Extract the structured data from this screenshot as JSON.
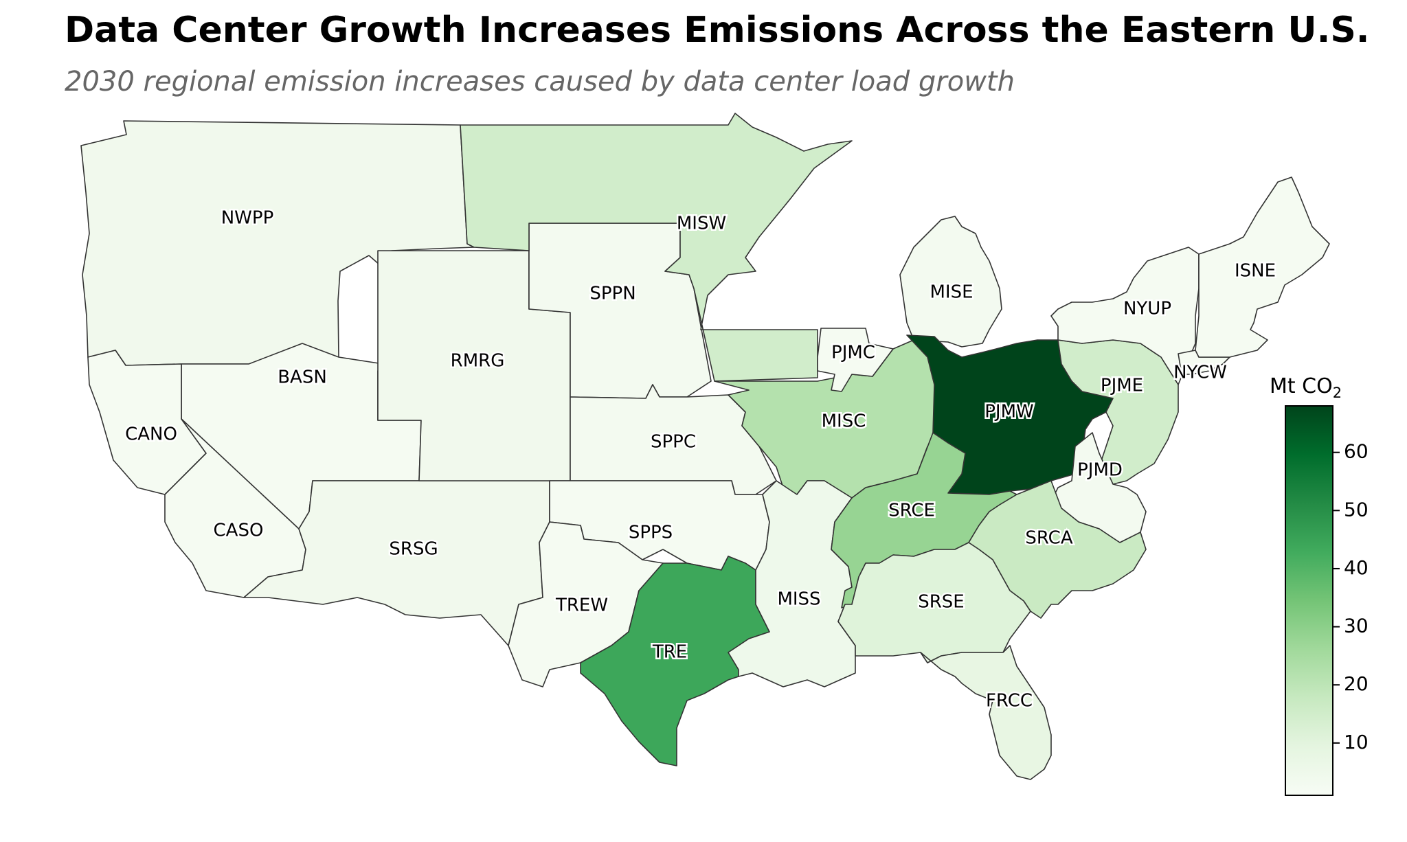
{
  "title": "Data Center Growth Increases Emissions Across the Eastern U.S.",
  "subtitle": "2030 regional emission increases caused by data center load growth",
  "colorbar": {
    "title": "Mt CO",
    "title_subscript": "2",
    "min": 1,
    "max": 68,
    "ticks": [
      10,
      20,
      30,
      40,
      50,
      60
    ],
    "colormap": "Greens",
    "ramp": [
      "#f7fcf5",
      "#e5f5e0",
      "#c7e9c0",
      "#a1d99b",
      "#74c476",
      "#41ab5d",
      "#238b45",
      "#006d2c",
      "#00441b"
    ]
  },
  "regions": [
    {
      "name": "NWPP",
      "label": "NWPP",
      "value": 4
    },
    {
      "name": "BASN",
      "label": "BASN",
      "value": 2
    },
    {
      "name": "CANO",
      "label": "CANO",
      "value": 2
    },
    {
      "name": "CASO",
      "label": "CASO",
      "value": 2
    },
    {
      "name": "SRSG",
      "label": "SRSG",
      "value": 4
    },
    {
      "name": "RMRG",
      "label": "RMRG",
      "value": 4
    },
    {
      "name": "SPPN",
      "label": "SPPN",
      "value": 3
    },
    {
      "name": "SPPC",
      "label": "SPPC",
      "value": 3
    },
    {
      "name": "SPPS",
      "label": "SPPS",
      "value": 2
    },
    {
      "name": "TREW",
      "label": "TREW",
      "value": 2
    },
    {
      "name": "TRE",
      "label": "TRE",
      "value": 44
    },
    {
      "name": "MISW",
      "label": "MISW",
      "value": 15
    },
    {
      "name": "MISC",
      "label": "MISC",
      "value": 22
    },
    {
      "name": "MISE",
      "label": "MISE",
      "value": 3
    },
    {
      "name": "MISS",
      "label": "MISS",
      "value": 5
    },
    {
      "name": "PJMC",
      "label": "PJMC",
      "value": 2
    },
    {
      "name": "PJMW",
      "label": "PJMW",
      "value": 68
    },
    {
      "name": "PJME",
      "label": "PJME",
      "value": 15
    },
    {
      "name": "PJMD",
      "label": "PJMD",
      "value": 3
    },
    {
      "name": "SRCE",
      "label": "SRCE",
      "value": 28
    },
    {
      "name": "SRCA",
      "label": "SRCA",
      "value": 17
    },
    {
      "name": "SRSE",
      "label": "SRSE",
      "value": 11
    },
    {
      "name": "FRCC",
      "label": "FRCC",
      "value": 8
    },
    {
      "name": "NYUP",
      "label": "NYUP",
      "value": 2
    },
    {
      "name": "NYCW",
      "label": "NYCW",
      "value": 2
    },
    {
      "name": "ISNE",
      "label": "ISNE",
      "value": 2
    }
  ]
}
